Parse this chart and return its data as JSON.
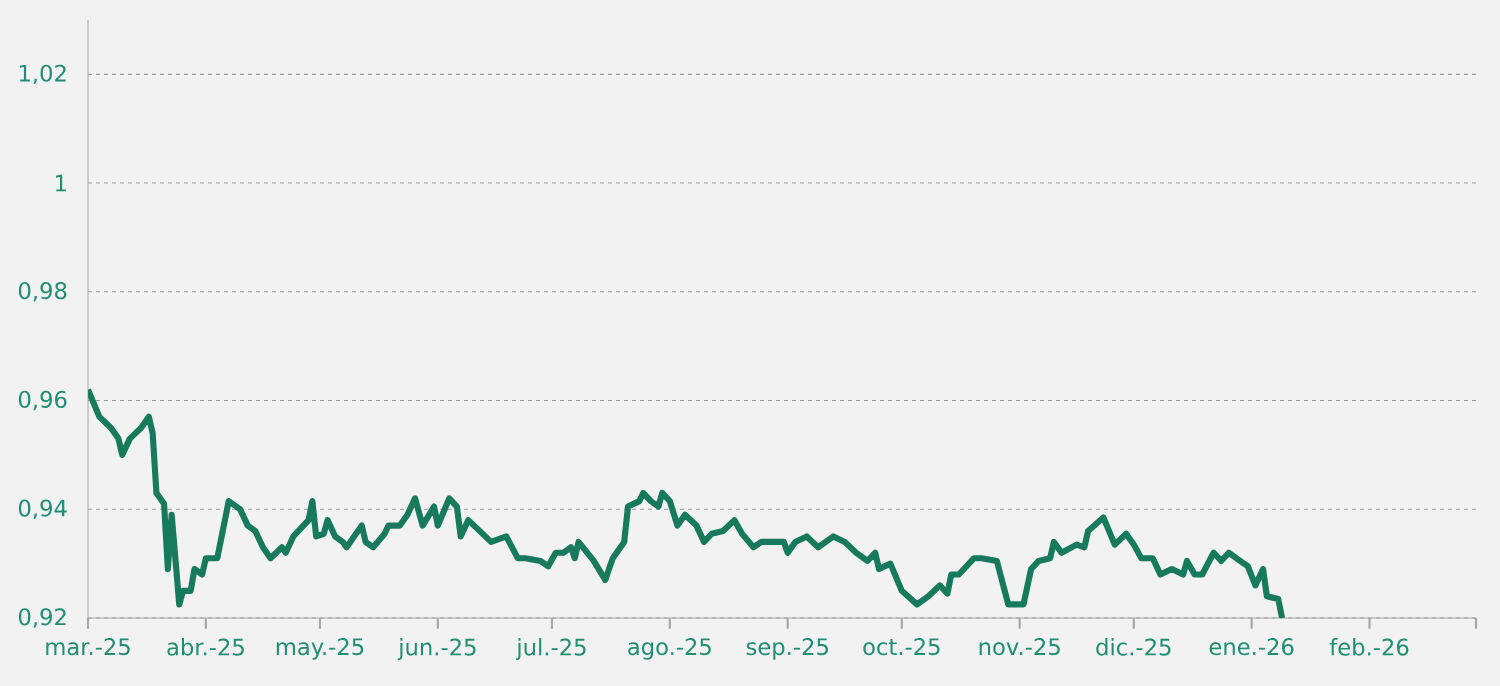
{
  "chart_data": {
    "type": "line",
    "color": "#177a5c",
    "grid": "y",
    "line_style": "solid",
    "xlim": [
      "2025-03-01",
      "2026-03-01"
    ],
    "xticks": [
      {
        "value": "2025-03-01",
        "label": "mar.-25"
      },
      {
        "value": "2025-04-01",
        "label": "abr.-25"
      },
      {
        "value": "2025-05-01",
        "label": "may.-25"
      },
      {
        "value": "2025-06-01",
        "label": "jun.-25"
      },
      {
        "value": "2025-07-01",
        "label": "jul.-25"
      },
      {
        "value": "2025-08-01",
        "label": "ago.-25"
      },
      {
        "value": "2025-09-01",
        "label": "sep.-25"
      },
      {
        "value": "2025-10-01",
        "label": "oct.-25"
      },
      {
        "value": "2025-11-01",
        "label": "nov.-25"
      },
      {
        "value": "2025-12-01",
        "label": "dic.-25"
      },
      {
        "value": "2026-01-01",
        "label": "ene.-26"
      },
      {
        "value": "2026-02-01",
        "label": "feb.-26"
      },
      {
        "value": "2026-03-01",
        "label": null
      }
    ],
    "ylim": [
      0.92,
      1.03
    ],
    "yticks": [
      {
        "value": 0.92,
        "label": "0,92"
      },
      {
        "value": 0.94,
        "label": "0,94"
      },
      {
        "value": 0.96,
        "label": "0,96"
      },
      {
        "value": 0.98,
        "label": "0,98"
      },
      {
        "value": 1,
        "label": "1"
      },
      {
        "value": 1.02,
        "label": "1,02"
      }
    ],
    "x": [
      "2025-03-01",
      "2025-03-04",
      "2025-03-07",
      "2025-03-09",
      "2025-03-10",
      "2025-03-12",
      "2025-03-15",
      "2025-03-16",
      "2025-03-17",
      "2025-03-18",
      "2025-03-19",
      "2025-03-21",
      "2025-03-22",
      "2025-03-23",
      "2025-03-25",
      "2025-03-26",
      "2025-03-28",
      "2025-03-29",
      "2025-03-31",
      "2025-04-01",
      "2025-04-04",
      "2025-04-07",
      "2025-04-10",
      "2025-04-12",
      "2025-04-14",
      "2025-04-16",
      "2025-04-18",
      "2025-04-21",
      "2025-04-22",
      "2025-04-24",
      "2025-04-28",
      "2025-04-29",
      "2025-04-30",
      "2025-05-02",
      "2025-05-03",
      "2025-05-05",
      "2025-05-07",
      "2025-05-08",
      "2025-05-12",
      "2025-05-13",
      "2025-05-15",
      "2025-05-18",
      "2025-05-19",
      "2025-05-20",
      "2025-05-22",
      "2025-05-24",
      "2025-05-26",
      "2025-05-28",
      "2025-05-31",
      "2025-06-01",
      "2025-06-04",
      "2025-06-06",
      "2025-06-07",
      "2025-06-09",
      "2025-06-15",
      "2025-06-19",
      "2025-06-22",
      "2025-06-24",
      "2025-06-28",
      "2025-06-30",
      "2025-07-02",
      "2025-07-04",
      "2025-07-06",
      "2025-07-07",
      "2025-07-08",
      "2025-07-12",
      "2025-07-15",
      "2025-07-17",
      "2025-07-20",
      "2025-07-21",
      "2025-07-24",
      "2025-07-25",
      "2025-07-27",
      "2025-07-29",
      "2025-07-30",
      "2025-08-01",
      "2025-08-03",
      "2025-08-05",
      "2025-08-08",
      "2025-08-10",
      "2025-08-12",
      "2025-08-15",
      "2025-08-18",
      "2025-08-20",
      "2025-08-23",
      "2025-08-25",
      "2025-08-28",
      "2025-08-31",
      "2025-09-01",
      "2025-09-03",
      "2025-09-06",
      "2025-09-09",
      "2025-09-13",
      "2025-09-16",
      "2025-09-19",
      "2025-09-22",
      "2025-09-24",
      "2025-09-25",
      "2025-09-28",
      "2025-10-01",
      "2025-10-05",
      "2025-10-08",
      "2025-10-11",
      "2025-10-13",
      "2025-10-14",
      "2025-10-16",
      "2025-10-20",
      "2025-10-22",
      "2025-10-26",
      "2025-10-29",
      "2025-11-02",
      "2025-11-04",
      "2025-11-06",
      "2025-11-09",
      "2025-11-10",
      "2025-11-12",
      "2025-11-16",
      "2025-11-18",
      "2025-11-19",
      "2025-11-23",
      "2025-11-26",
      "2025-11-29",
      "2025-12-01",
      "2025-12-03",
      "2025-12-06",
      "2025-12-08",
      "2025-12-11",
      "2025-12-14",
      "2025-12-15",
      "2025-12-17",
      "2025-12-19",
      "2025-12-22",
      "2025-12-24",
      "2025-12-26",
      "2025-12-29",
      "2025-12-31",
      "2026-01-02",
      "2026-01-04",
      "2026-01-05",
      "2026-01-08",
      "2026-01-09"
    ],
    "values": [
      0.962,
      0.957,
      0.955,
      0.953,
      0.95,
      0.953,
      0.955,
      0.956,
      0.957,
      0.954,
      0.943,
      0.941,
      0.929,
      0.939,
      0.9225,
      0.925,
      0.925,
      0.929,
      0.928,
      0.931,
      0.931,
      0.9415,
      0.94,
      0.937,
      0.936,
      0.933,
      0.931,
      0.933,
      0.932,
      0.935,
      0.938,
      0.9415,
      0.935,
      0.9355,
      0.938,
      0.935,
      0.934,
      0.933,
      0.937,
      0.934,
      0.933,
      0.9355,
      0.937,
      0.937,
      0.937,
      0.939,
      0.942,
      0.937,
      0.9405,
      0.937,
      0.942,
      0.9405,
      0.935,
      0.938,
      0.934,
      0.935,
      0.931,
      0.931,
      0.9305,
      0.9295,
      0.932,
      0.932,
      0.933,
      0.931,
      0.934,
      0.9305,
      0.927,
      0.931,
      0.934,
      0.9405,
      0.9415,
      0.943,
      0.9415,
      0.9405,
      0.943,
      0.9415,
      0.937,
      0.939,
      0.937,
      0.934,
      0.9355,
      0.936,
      0.938,
      0.9355,
      0.933,
      0.934,
      0.934,
      0.934,
      0.932,
      0.934,
      0.935,
      0.933,
      0.935,
      0.934,
      0.932,
      0.9305,
      0.932,
      0.929,
      0.93,
      0.925,
      0.9225,
      0.924,
      0.926,
      0.9245,
      0.928,
      0.928,
      0.931,
      0.931,
      0.9305,
      0.9225,
      0.9225,
      0.929,
      0.9305,
      0.931,
      0.934,
      0.932,
      0.9335,
      0.933,
      0.936,
      0.9385,
      0.9335,
      0.9355,
      0.9335,
      0.931,
      0.931,
      0.928,
      0.929,
      0.928,
      0.9305,
      0.928,
      0.928,
      0.932,
      0.9305,
      0.932,
      0.9305,
      0.9295,
      0.926,
      0.929,
      0.924,
      0.9235,
      0.92
    ]
  }
}
